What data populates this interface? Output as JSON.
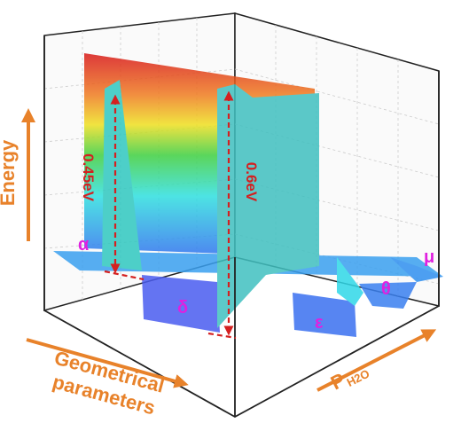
{
  "axes": {
    "energy": "Energy",
    "geometry": [
      "Geometrical",
      "parameters"
    ],
    "pressure": {
      "main": "P",
      "sub": "H2O"
    }
  },
  "states": [
    "α",
    "δ",
    "ε",
    "θ",
    "μ"
  ],
  "barriers": [
    "0.45eV",
    "0.6eV"
  ]
}
